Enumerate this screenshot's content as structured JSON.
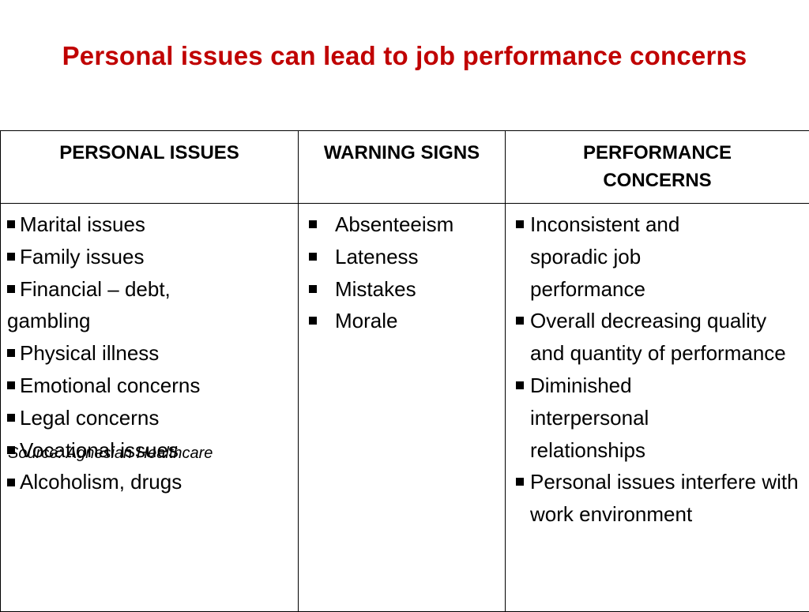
{
  "title": "Personal issues can lead to job performance concerns",
  "colors": {
    "title": "#C00000",
    "border": "#000000",
    "text": "#000000",
    "background": "#FFFFFF"
  },
  "table": {
    "headers": [
      "PERSONAL ISSUES",
      "WARNING SIGNS",
      "PERFORMANCE CONCERNS"
    ],
    "personal_issues": [
      "Marital issues",
      "Family issues",
      "Financial – debt, gambling",
      "Physical illness",
      "Emotional concerns",
      "Legal concerns",
      "Vocational issues",
      "Alcoholism, drugs"
    ],
    "warning_signs": [
      "Absenteeism",
      "Lateness",
      "Mistakes",
      "Morale"
    ],
    "performance_concerns": [
      "Inconsistent and sporadic job performance",
      "Overall decreasing quality and quantity of performance",
      "Diminished interpersonal relationships",
      "Personal issues interfere with work environment"
    ]
  },
  "source": "Source: Agnesian Healthcare",
  "bullet_icon": "square-bullet-icon"
}
